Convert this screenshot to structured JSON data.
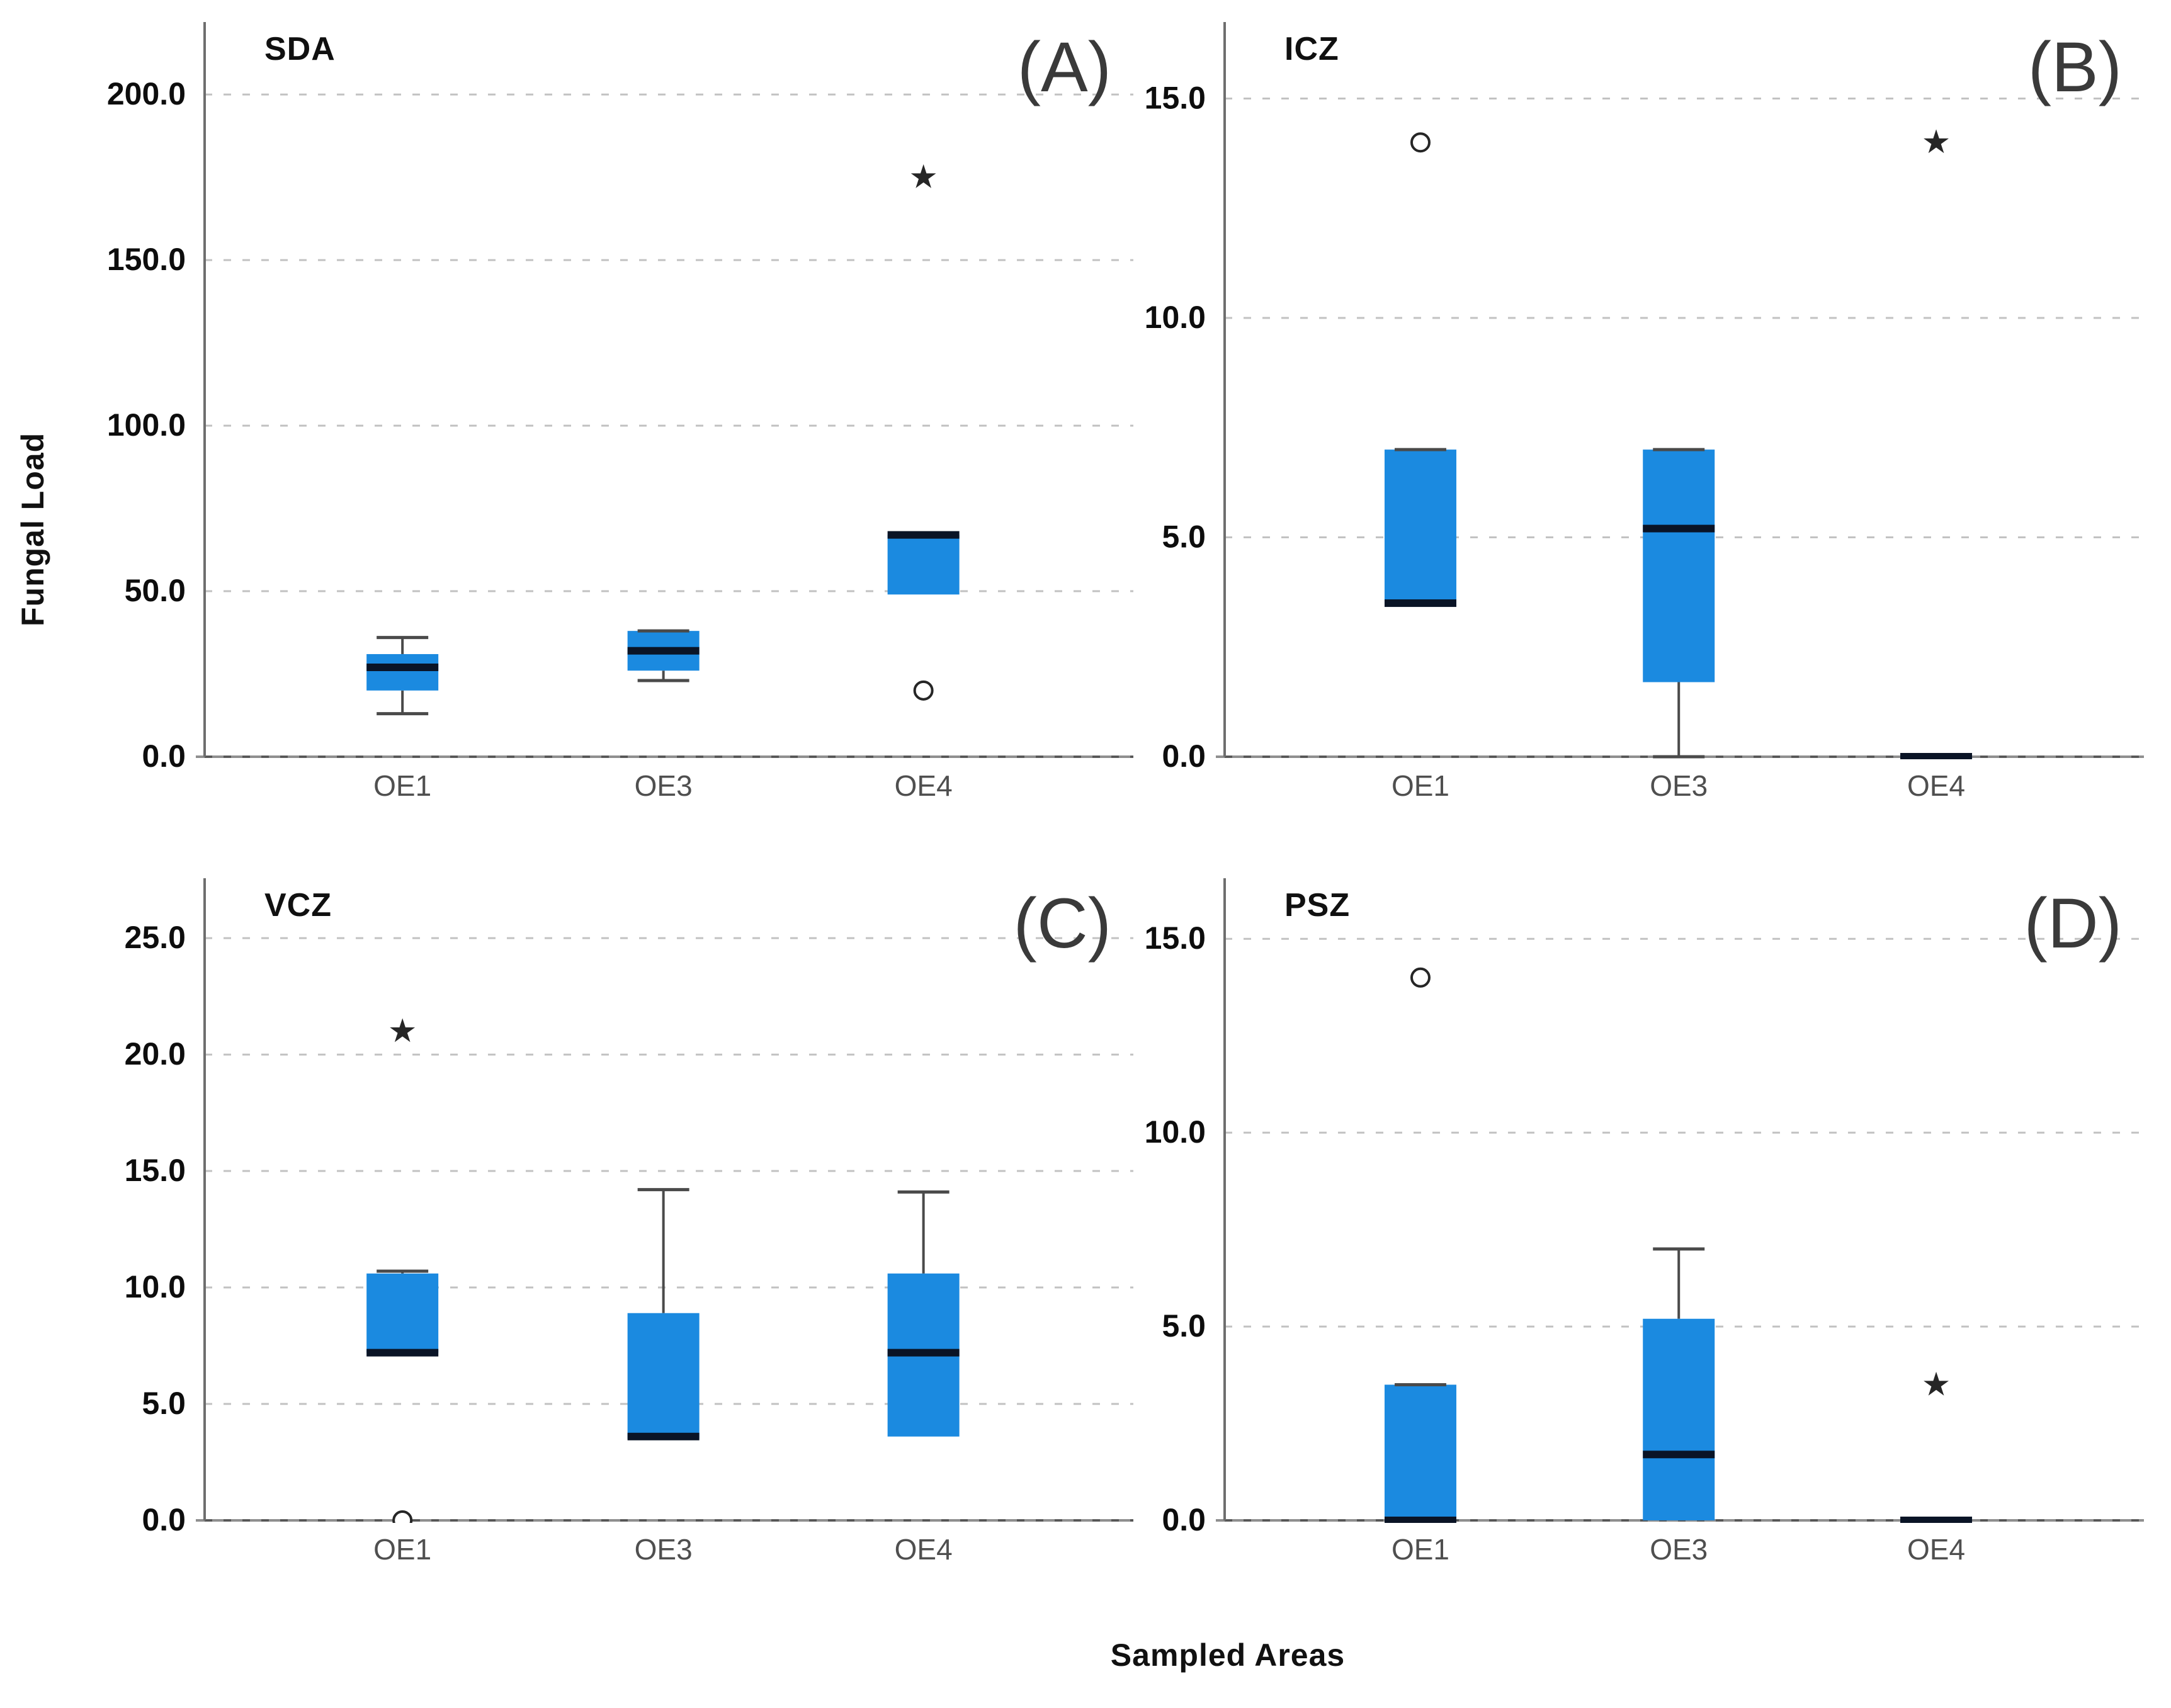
{
  "figure": {
    "y_axis_label": "Fungal Load",
    "x_axis_label": "Sampled Areas",
    "colors": {
      "box_fill": "#1b8ae0",
      "median": "#0a1426",
      "whisker": "#4a4a4a",
      "grid": "#c2c2c2",
      "axis": "#6e6e6e",
      "baseline": "#8f8f8f",
      "baseline_dash": "#555555",
      "tick_label": "#0d0d0d",
      "category_label": "#4f4f4f",
      "title": "#101010",
      "corner_letter": "#3a3a3a",
      "outlier": "#262626"
    }
  },
  "chart_data": [
    {
      "type": "box",
      "panel_letter": "(A)",
      "title": "SDA",
      "ylabel_shared": "Fungal Load",
      "ylim": [
        0,
        220
      ],
      "yticks": [
        0,
        50,
        100,
        150,
        200
      ],
      "grid": true,
      "categories": [
        "OE1",
        "OE3",
        "OE4"
      ],
      "boxes": [
        {
          "category": "OE1",
          "q1": 20,
          "median": 27,
          "q3": 31,
          "whisker_low": 13,
          "whisker_high": 36,
          "circles": [],
          "stars": []
        },
        {
          "category": "OE3",
          "q1": 26,
          "median": 32,
          "q3": 38,
          "whisker_low": 23,
          "whisker_high": 38,
          "circles": [],
          "stars": []
        },
        {
          "category": "OE4",
          "q1": 49,
          "median": 67,
          "q3": 67,
          "whisker_low": null,
          "whisker_high": null,
          "circles": [
            20
          ],
          "stars": [
            175
          ]
        }
      ]
    },
    {
      "type": "box",
      "panel_letter": "(B)",
      "title": "ICZ",
      "ylim": [
        0,
        16.6
      ],
      "yticks": [
        0,
        5,
        10,
        15
      ],
      "grid": true,
      "categories": [
        "OE1",
        "OE3",
        "OE4"
      ],
      "boxes": [
        {
          "category": "OE1",
          "q1": 3.5,
          "median": 3.5,
          "q3": 7.0,
          "whisker_low": null,
          "whisker_high": 7.0,
          "circles": [
            14.0
          ],
          "stars": []
        },
        {
          "category": "OE3",
          "q1": 1.7,
          "median": 5.2,
          "q3": 7.0,
          "whisker_low": 0.0,
          "whisker_high": 7.0,
          "circles": [],
          "stars": []
        },
        {
          "category": "OE4",
          "q1": 0.0,
          "median": 0.0,
          "q3": 0.0,
          "whisker_low": null,
          "whisker_high": null,
          "circles": [],
          "stars": [
            14.0
          ]
        }
      ]
    },
    {
      "type": "box",
      "panel_letter": "(C)",
      "title": "VCZ",
      "ylim": [
        0,
        27.3
      ],
      "yticks": [
        0,
        5,
        10,
        15,
        20,
        25
      ],
      "grid": true,
      "categories": [
        "OE1",
        "OE3",
        "OE4"
      ],
      "boxes": [
        {
          "category": "OE1",
          "q1": 7.2,
          "median": 7.2,
          "q3": 10.6,
          "whisker_low": null,
          "whisker_high": 10.7,
          "circles": [
            0.0
          ],
          "stars": [
            21.0
          ]
        },
        {
          "category": "OE3",
          "q1": 3.5,
          "median": 3.6,
          "q3": 8.9,
          "whisker_low": null,
          "whisker_high": 14.2,
          "circles": [],
          "stars": []
        },
        {
          "category": "OE4",
          "q1": 3.6,
          "median": 7.2,
          "q3": 10.6,
          "whisker_low": null,
          "whisker_high": 14.1,
          "circles": [],
          "stars": []
        }
      ]
    },
    {
      "type": "box",
      "panel_letter": "(D)",
      "title": "PSZ",
      "ylim": [
        0,
        16.4
      ],
      "yticks": [
        0,
        5,
        10,
        15
      ],
      "grid": true,
      "categories": [
        "OE1",
        "OE3",
        "OE4"
      ],
      "boxes": [
        {
          "category": "OE1",
          "q1": 0.0,
          "median": 0.0,
          "q3": 3.5,
          "whisker_low": null,
          "whisker_high": 3.5,
          "circles": [
            14.0
          ],
          "stars": []
        },
        {
          "category": "OE3",
          "q1": 0.0,
          "median": 1.7,
          "q3": 5.2,
          "whisker_low": null,
          "whisker_high": 7.0,
          "circles": [],
          "stars": []
        },
        {
          "category": "OE4",
          "q1": 0.0,
          "median": 0.0,
          "q3": 0.0,
          "whisker_low": null,
          "whisker_high": null,
          "circles": [],
          "stars": [
            3.5
          ]
        }
      ]
    }
  ]
}
